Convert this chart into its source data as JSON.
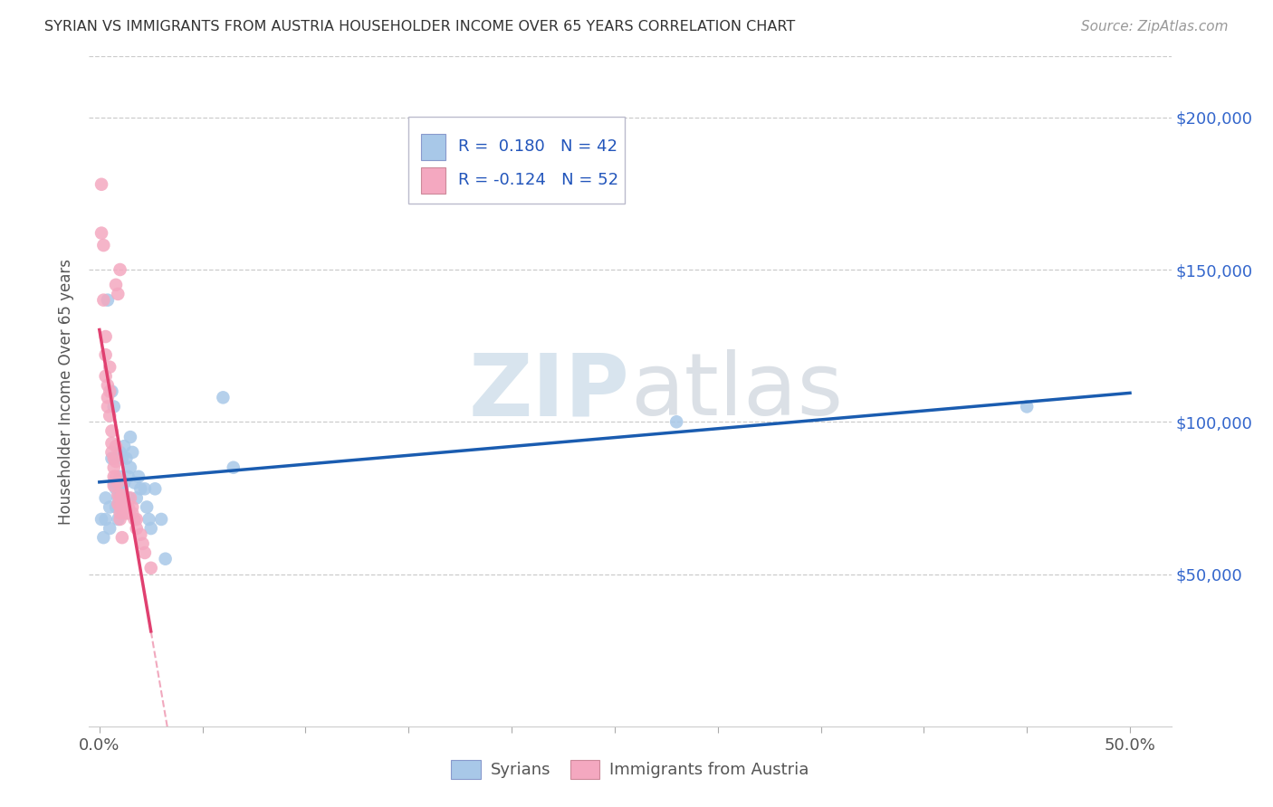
{
  "title": "SYRIAN VS IMMIGRANTS FROM AUSTRIA HOUSEHOLDER INCOME OVER 65 YEARS CORRELATION CHART",
  "source": "Source: ZipAtlas.com",
  "ylabel": "Householder Income Over 65 years",
  "ytick_values": [
    50000,
    100000,
    150000,
    200000
  ],
  "ylim": [
    0,
    220000
  ],
  "xlim": [
    -0.005,
    0.52
  ],
  "legend_r_syrian": "0.180",
  "legend_n_syrian": "42",
  "legend_r_austria": "-0.124",
  "legend_n_austria": "52",
  "syrian_color": "#a8c8e8",
  "austria_color": "#f4a8c0",
  "syrian_line_color": "#1a5cb0",
  "austria_line_color": "#e04070",
  "background_color": "#ffffff",
  "grid_color": "#cccccc",
  "syrians_x": [
    0.001,
    0.002,
    0.003,
    0.003,
    0.004,
    0.005,
    0.005,
    0.006,
    0.006,
    0.007,
    0.007,
    0.008,
    0.008,
    0.009,
    0.009,
    0.01,
    0.01,
    0.011,
    0.011,
    0.012,
    0.012,
    0.013,
    0.014,
    0.014,
    0.015,
    0.015,
    0.016,
    0.017,
    0.018,
    0.019,
    0.02,
    0.022,
    0.023,
    0.024,
    0.025,
    0.027,
    0.03,
    0.032,
    0.06,
    0.065,
    0.45,
    0.28
  ],
  "syrians_y": [
    68000,
    62000,
    75000,
    68000,
    140000,
    72000,
    65000,
    110000,
    88000,
    105000,
    80000,
    78000,
    72000,
    75000,
    68000,
    90000,
    82000,
    88000,
    78000,
    92000,
    80000,
    88000,
    82000,
    75000,
    95000,
    85000,
    90000,
    80000,
    75000,
    82000,
    78000,
    78000,
    72000,
    68000,
    65000,
    78000,
    68000,
    55000,
    108000,
    85000,
    105000,
    100000
  ],
  "austria_x": [
    0.001,
    0.001,
    0.002,
    0.002,
    0.003,
    0.003,
    0.003,
    0.004,
    0.004,
    0.004,
    0.005,
    0.005,
    0.005,
    0.006,
    0.006,
    0.006,
    0.007,
    0.007,
    0.007,
    0.007,
    0.008,
    0.008,
    0.008,
    0.009,
    0.009,
    0.009,
    0.01,
    0.01,
    0.01,
    0.01,
    0.011,
    0.011,
    0.012,
    0.012,
    0.013,
    0.013,
    0.014,
    0.014,
    0.015,
    0.016,
    0.016,
    0.017,
    0.018,
    0.018,
    0.02,
    0.021,
    0.022,
    0.025,
    0.008,
    0.009,
    0.01,
    0.011
  ],
  "austria_y": [
    178000,
    162000,
    158000,
    140000,
    128000,
    122000,
    115000,
    112000,
    108000,
    105000,
    118000,
    110000,
    102000,
    97000,
    93000,
    90000,
    88000,
    85000,
    82000,
    79000,
    92000,
    87000,
    82000,
    80000,
    76000,
    73000,
    75000,
    72000,
    70000,
    68000,
    76000,
    73000,
    73000,
    70000,
    72000,
    70000,
    72000,
    70000,
    75000,
    72000,
    70000,
    68000,
    68000,
    65000,
    63000,
    60000,
    57000,
    52000,
    145000,
    142000,
    150000,
    62000
  ]
}
